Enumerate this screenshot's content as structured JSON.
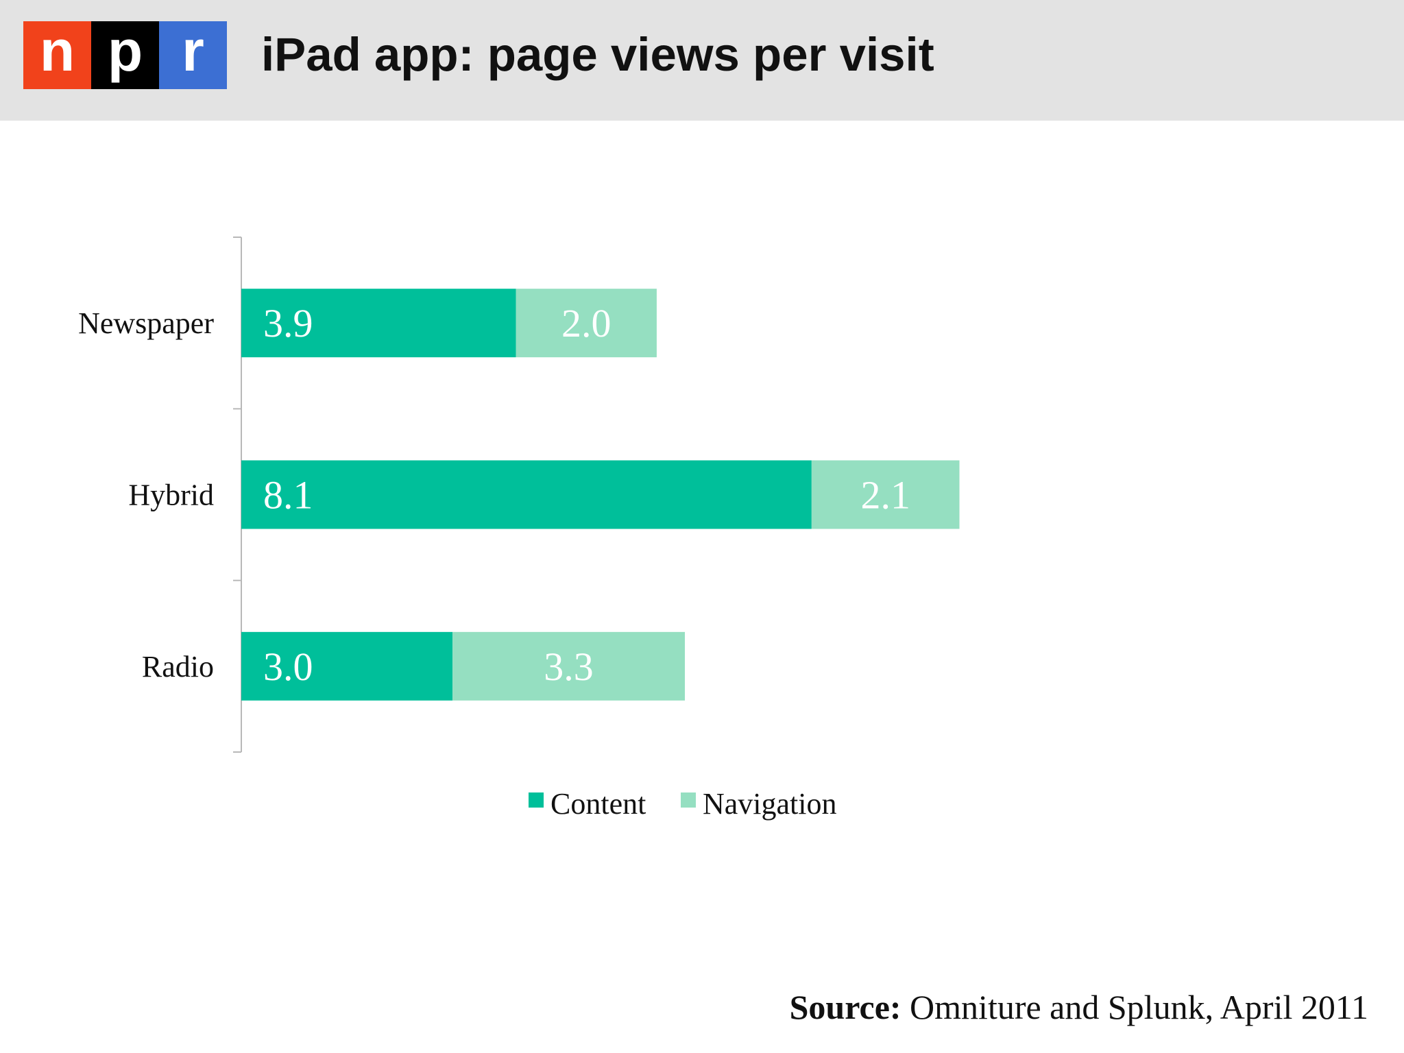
{
  "header": {
    "logo_letters": [
      "n",
      "p",
      "r"
    ],
    "logo_colors": [
      "#f1421b",
      "#000000",
      "#3c6fd3"
    ],
    "title": "iPad app: page views per visit"
  },
  "colors": {
    "content": "#00bf9a",
    "navigation": "#95dfc1",
    "axis": "#b8b8b8"
  },
  "chart_data": {
    "type": "bar",
    "orientation": "horizontal",
    "stacked": true,
    "categories": [
      "Newspaper",
      "Hybrid",
      "Radio"
    ],
    "series": [
      {
        "name": "Content",
        "values": [
          3.9,
          8.1,
          3.0
        ]
      },
      {
        "name": "Navigation",
        "values": [
          2.0,
          2.1,
          3.3
        ]
      }
    ],
    "value_labels": [
      [
        "3.9",
        "8.1",
        "3.0"
      ],
      [
        "2.0",
        "2.1",
        "3.3"
      ]
    ],
    "xlim": [
      0,
      12.6
    ],
    "grid": false,
    "legend_position": "bottom"
  },
  "source": {
    "label": "Source:",
    "text": " Omniture and Splunk, April 2011"
  }
}
